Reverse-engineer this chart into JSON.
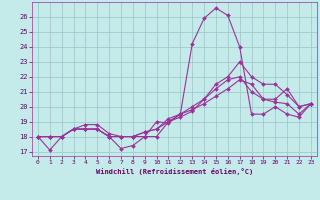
{
  "xlabel": "Windchill (Refroidissement éolien,°C)",
  "xlim": [
    -0.5,
    23.5
  ],
  "ylim": [
    16.7,
    27.0
  ],
  "xticks": [
    0,
    1,
    2,
    3,
    4,
    5,
    6,
    7,
    8,
    9,
    10,
    11,
    12,
    13,
    14,
    15,
    16,
    17,
    18,
    19,
    20,
    21,
    22,
    23
  ],
  "yticks": [
    17,
    18,
    19,
    20,
    21,
    22,
    23,
    24,
    25,
    26
  ],
  "background_color": "#c5eaea",
  "grid_color": "#a0cccc",
  "line_color": "#993399",
  "lines": [
    {
      "x": [
        0,
        1,
        2,
        3,
        4,
        5,
        6,
        7,
        8,
        9,
        10,
        11,
        12,
        13,
        14,
        15,
        16,
        17,
        18,
        19,
        20,
        21,
        22,
        23
      ],
      "y": [
        18.0,
        17.1,
        18.0,
        18.5,
        18.5,
        18.5,
        18.0,
        17.2,
        17.4,
        18.0,
        19.0,
        18.9,
        19.5,
        24.2,
        25.9,
        26.6,
        26.1,
        24.0,
        19.5,
        19.5,
        20.0,
        19.5,
        19.3,
        20.2
      ]
    },
    {
      "x": [
        0,
        1,
        2,
        3,
        4,
        5,
        6,
        7,
        8,
        9,
        10,
        11,
        12,
        13,
        14,
        15,
        16,
        17,
        18,
        19,
        20,
        21,
        22,
        23
      ],
      "y": [
        18.0,
        18.0,
        18.0,
        18.5,
        18.5,
        18.5,
        18.0,
        18.0,
        18.0,
        18.0,
        18.0,
        19.0,
        19.3,
        19.7,
        20.5,
        21.5,
        22.0,
        23.0,
        22.0,
        21.5,
        21.5,
        20.8,
        20.0,
        20.2
      ]
    },
    {
      "x": [
        0,
        1,
        2,
        3,
        4,
        5,
        6,
        7,
        8,
        9,
        10,
        11,
        12,
        13,
        14,
        15,
        16,
        17,
        18,
        19,
        20,
        21,
        22,
        23
      ],
      "y": [
        18.0,
        18.0,
        18.0,
        18.5,
        18.5,
        18.5,
        18.0,
        18.0,
        18.0,
        18.3,
        18.5,
        19.0,
        19.5,
        19.8,
        20.2,
        20.7,
        21.2,
        21.8,
        21.5,
        20.5,
        20.3,
        20.2,
        19.5,
        20.2
      ]
    },
    {
      "x": [
        0,
        1,
        2,
        3,
        4,
        5,
        6,
        7,
        8,
        9,
        10,
        11,
        12,
        13,
        14,
        15,
        16,
        17,
        18,
        19,
        20,
        21,
        22,
        23
      ],
      "y": [
        18.0,
        18.0,
        18.0,
        18.5,
        18.8,
        18.8,
        18.2,
        18.0,
        18.0,
        18.3,
        18.5,
        19.2,
        19.5,
        20.0,
        20.5,
        21.2,
        21.8,
        22.0,
        21.0,
        20.5,
        20.5,
        21.2,
        20.0,
        20.2
      ]
    }
  ]
}
